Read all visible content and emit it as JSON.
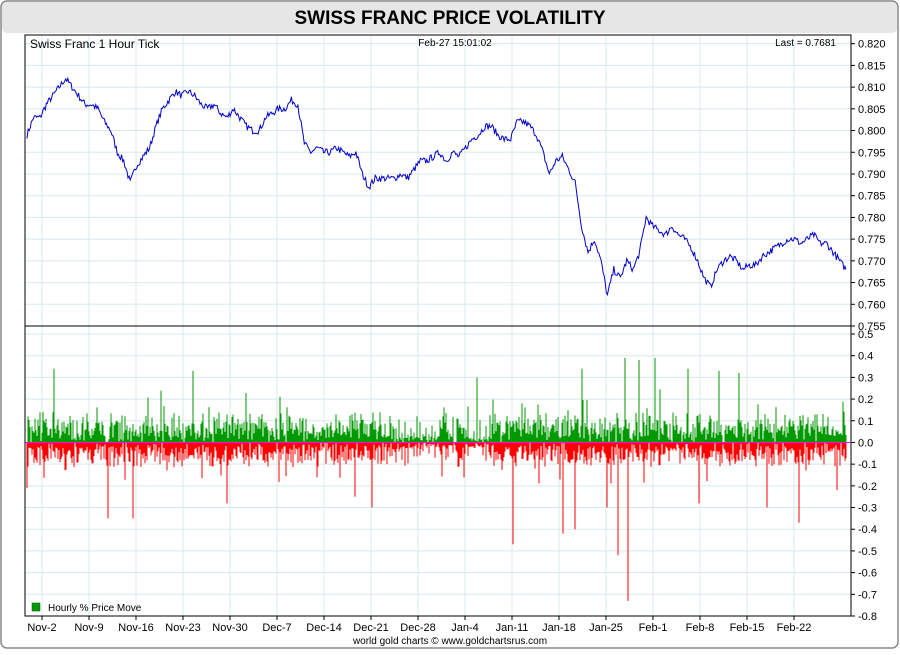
{
  "title": "SWISS FRANC PRICE VOLATILITY",
  "chart_data": [
    {
      "type": "line",
      "label": "Swiss Franc 1 Hour Tick",
      "timestamp": "Feb-27  15:01:02",
      "last": "Last = 0.7681",
      "ylim": [
        0.755,
        0.822
      ],
      "yticks": [
        "0.820",
        "0.815",
        "0.810",
        "0.805",
        "0.800",
        "0.795",
        "0.790",
        "0.785",
        "0.780",
        "0.775",
        "0.770",
        "0.765",
        "0.760",
        "0.755"
      ],
      "series": [
        {
          "color": "#0000cc",
          "points": [
            [
              0,
              0.799
            ],
            [
              1,
              0.803
            ],
            [
              2,
              0.803
            ],
            [
              3,
              0.806
            ],
            [
              4,
              0.808
            ],
            [
              5,
              0.81
            ],
            [
              6,
              0.812
            ],
            [
              7,
              0.81
            ],
            [
              8,
              0.808
            ],
            [
              9,
              0.806
            ],
            [
              10,
              0.806
            ],
            [
              11,
              0.805
            ],
            [
              12,
              0.802
            ],
            [
              13,
              0.8
            ],
            [
              14,
              0.795
            ],
            [
              15,
              0.793
            ],
            [
              16,
              0.788
            ],
            [
              17,
              0.792
            ],
            [
              18,
              0.794
            ],
            [
              19,
              0.796
            ],
            [
              20,
              0.801
            ],
            [
              21,
              0.805
            ],
            [
              22,
              0.807
            ],
            [
              23,
              0.809
            ],
            [
              24,
              0.808
            ],
            [
              25,
              0.809
            ],
            [
              26,
              0.808
            ],
            [
              27,
              0.806
            ],
            [
              28,
              0.805
            ],
            [
              29,
              0.806
            ],
            [
              30,
              0.804
            ],
            [
              31,
              0.803
            ],
            [
              32,
              0.805
            ],
            [
              33,
              0.803
            ],
            [
              34,
              0.801
            ],
            [
              35,
              0.8
            ],
            [
              36,
              0.8
            ],
            [
              37,
              0.803
            ],
            [
              38,
              0.804
            ],
            [
              39,
              0.805
            ],
            [
              40,
              0.805
            ],
            [
              41,
              0.807
            ],
            [
              42,
              0.806
            ],
            [
              43,
              0.797
            ],
            [
              44,
              0.795
            ],
            [
              45,
              0.796
            ],
            [
              46,
              0.795
            ],
            [
              47,
              0.795
            ],
            [
              48,
              0.796
            ],
            [
              49,
              0.795
            ],
            [
              50,
              0.794
            ],
            [
              51,
              0.795
            ],
            [
              52,
              0.79
            ],
            [
              53,
              0.787
            ],
            [
              54,
              0.789
            ],
            [
              55,
              0.789
            ],
            [
              56,
              0.789
            ],
            [
              57,
              0.789
            ],
            [
              58,
              0.79
            ],
            [
              59,
              0.789
            ],
            [
              60,
              0.791
            ],
            [
              61,
              0.793
            ],
            [
              62,
              0.793
            ],
            [
              63,
              0.794
            ],
            [
              64,
              0.795
            ],
            [
              65,
              0.793
            ],
            [
              66,
              0.795
            ],
            [
              67,
              0.794
            ],
            [
              68,
              0.796
            ],
            [
              69,
              0.798
            ],
            [
              70,
              0.799
            ],
            [
              71,
              0.801
            ],
            [
              72,
              0.801
            ],
            [
              73,
              0.799
            ],
            [
              74,
              0.798
            ],
            [
              75,
              0.798
            ],
            [
              76,
              0.802
            ],
            [
              77,
              0.802
            ],
            [
              78,
              0.801
            ],
            [
              79,
              0.799
            ],
            [
              80,
              0.795
            ],
            [
              81,
              0.79
            ],
            [
              82,
              0.793
            ],
            [
              83,
              0.794
            ],
            [
              84,
              0.791
            ],
            [
              85,
              0.788
            ],
            [
              86,
              0.778
            ],
            [
              87,
              0.772
            ],
            [
              88,
              0.775
            ],
            [
              89,
              0.77
            ],
            [
              90,
              0.762
            ],
            [
              91,
              0.768
            ],
            [
              92,
              0.766
            ],
            [
              93,
              0.77
            ],
            [
              94,
              0.768
            ],
            [
              95,
              0.772
            ],
            [
              96,
              0.78
            ],
            [
              97,
              0.778
            ],
            [
              98,
              0.777
            ],
            [
              99,
              0.776
            ],
            [
              100,
              0.778
            ],
            [
              101,
              0.776
            ],
            [
              102,
              0.775
            ],
            [
              103,
              0.773
            ],
            [
              104,
              0.77
            ],
            [
              105,
              0.766
            ],
            [
              106,
              0.764
            ],
            [
              107,
              0.768
            ],
            [
              108,
              0.77
            ],
            [
              109,
              0.771
            ],
            [
              110,
              0.77
            ],
            [
              111,
              0.768
            ],
            [
              112,
              0.769
            ],
            [
              113,
              0.769
            ],
            [
              114,
              0.771
            ],
            [
              115,
              0.772
            ],
            [
              116,
              0.773
            ],
            [
              117,
              0.774
            ],
            [
              118,
              0.775
            ],
            [
              119,
              0.775
            ],
            [
              120,
              0.774
            ],
            [
              121,
              0.775
            ],
            [
              122,
              0.776
            ],
            [
              123,
              0.774
            ],
            [
              124,
              0.774
            ],
            [
              125,
              0.772
            ],
            [
              126,
              0.77
            ],
            [
              127,
              0.768
            ]
          ]
        }
      ]
    },
    {
      "type": "bar",
      "legend": "Hourly % Price Move",
      "legend_position": "bottom-left",
      "ylim": [
        -0.8,
        0.5
      ],
      "yticks": [
        "0.5",
        "0.4",
        "0.3",
        "0.2",
        "0.1",
        "0.0",
        "-0.1",
        "-0.2",
        "-0.3",
        "-0.4",
        "-0.5",
        "-0.6",
        "-0.7",
        "-0.8"
      ],
      "positive_color": "#009900",
      "negative_color": "#ff0000",
      "zero_line_color": "#ff00ff",
      "highlights": [
        {
          "x": 27,
          "value": 0.34
        },
        {
          "x": 81,
          "value": -0.35
        },
        {
          "x": 106,
          "value": -0.35
        },
        {
          "x": 166,
          "value": 0.33
        },
        {
          "x": 200,
          "value": -0.28
        },
        {
          "x": 328,
          "value": -0.25
        },
        {
          "x": 345,
          "value": -0.3
        },
        {
          "x": 450,
          "value": 0.3
        },
        {
          "x": 486,
          "value": -0.47
        },
        {
          "x": 536,
          "value": -0.42
        },
        {
          "x": 548,
          "value": -0.4
        },
        {
          "x": 555,
          "value": 0.34
        },
        {
          "x": 580,
          "value": -0.3
        },
        {
          "x": 591,
          "value": -0.52
        },
        {
          "x": 598,
          "value": 0.39
        },
        {
          "x": 601,
          "value": -0.73
        },
        {
          "x": 612,
          "value": 0.38
        },
        {
          "x": 628,
          "value": 0.39
        },
        {
          "x": 661,
          "value": 0.34
        },
        {
          "x": 672,
          "value": -0.28
        },
        {
          "x": 692,
          "value": 0.33
        },
        {
          "x": 712,
          "value": 0.32
        },
        {
          "x": 740,
          "value": -0.3
        },
        {
          "x": 772,
          "value": -0.37
        },
        {
          "x": 810,
          "value": -0.22
        }
      ]
    }
  ],
  "x_axis": {
    "ticks": [
      "Nov-2",
      "Nov-9",
      "Nov-16",
      "Nov-23",
      "Nov-30",
      "Dec-7",
      "Dec-14",
      "Dec-21",
      "Dec-28",
      "Jan-4",
      "Jan-11",
      "Jan-18",
      "Jan-25",
      "Feb-1",
      "Feb-8",
      "Feb-15",
      "Feb-22"
    ]
  },
  "footer": "world gold charts © www.goldchartsrus.com",
  "colors": {
    "title_bg": "#e6e6e6",
    "grid": "#d8e8ee",
    "frame": "#888888"
  }
}
